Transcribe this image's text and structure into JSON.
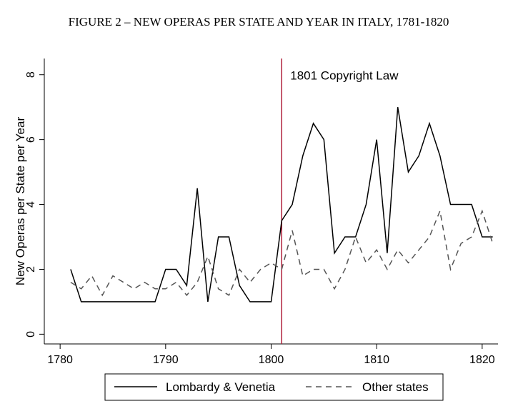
{
  "chart_data": {
    "type": "line",
    "title": "FIGURE 2 – NEW OPERAS PER STATE AND YEAR IN ITALY, 1781-1820",
    "xlabel": "",
    "ylabel": "New Operas per State per Year",
    "xlim": [
      1778.5,
      1821.5
    ],
    "ylim": [
      -0.3,
      8.5
    ],
    "xticks": [
      1780,
      1790,
      1800,
      1810,
      1820
    ],
    "yticks": [
      0,
      2,
      4,
      6,
      8
    ],
    "x": [
      1781,
      1782,
      1783,
      1784,
      1785,
      1786,
      1787,
      1788,
      1789,
      1790,
      1791,
      1792,
      1793,
      1794,
      1795,
      1796,
      1797,
      1798,
      1799,
      1800,
      1801,
      1802,
      1803,
      1804,
      1805,
      1806,
      1807,
      1808,
      1809,
      1810,
      1811,
      1812,
      1813,
      1814,
      1815,
      1816,
      1817,
      1818,
      1819,
      1820,
      1821
    ],
    "series": [
      {
        "name": "Lombardy & Venetia",
        "style": "solid",
        "color": "#000000",
        "values": [
          2,
          1,
          1,
          1,
          1,
          1,
          1,
          1,
          1,
          2,
          2,
          1.5,
          4.5,
          1,
          3,
          3,
          1.5,
          1,
          1,
          1,
          3.5,
          4,
          5.5,
          6.5,
          6,
          2.5,
          3,
          3,
          4,
          6,
          2.5,
          7,
          5,
          5.5,
          6.5,
          5.5,
          4,
          4,
          4,
          3,
          3
        ]
      },
      {
        "name": "Other states",
        "style": "dashed",
        "color": "#555555",
        "values": [
          1.6,
          1.4,
          1.8,
          1.2,
          1.8,
          1.6,
          1.4,
          1.6,
          1.4,
          1.4,
          1.6,
          1.2,
          1.6,
          2.4,
          1.4,
          1.2,
          2,
          1.6,
          2,
          2.2,
          2,
          3.2,
          1.8,
          2,
          2,
          1.4,
          2,
          3,
          2.2,
          2.6,
          2,
          2.6,
          2.2,
          2.6,
          3,
          3.8,
          2,
          2.8,
          3,
          3.8,
          2.8
        ]
      }
    ],
    "annotation": {
      "x": 1801,
      "label": "1801 Copyright Law",
      "color": "#b0203a"
    },
    "legend": {
      "placement": "bottom"
    }
  }
}
